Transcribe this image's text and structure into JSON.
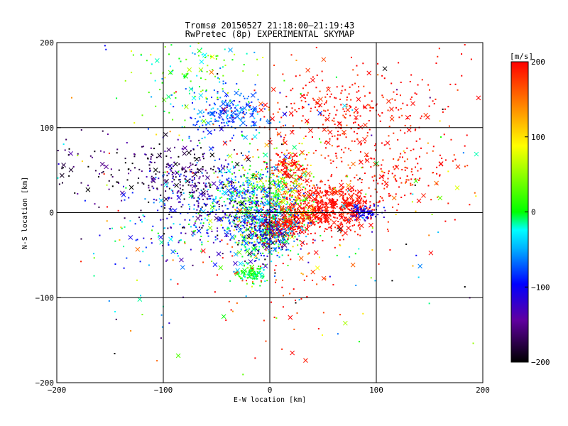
{
  "chart_data": {
    "type": "scatter",
    "title": "Tromsø 20150527 21:18:00–21:19:43",
    "subtitle": "RwPretec (8p) EXPERIMENTAL SKYMAP",
    "xlabel": "E-W location [km]",
    "ylabel": "N-S location [km]",
    "xlim": [
      -200,
      200
    ],
    "ylim": [
      -200,
      200
    ],
    "xticks": [
      "−200",
      "−100",
      "0",
      "100",
      "200"
    ],
    "yticks": [
      "−200",
      "−100",
      "0",
      "100",
      "200"
    ],
    "xtick_values": [
      -200,
      -100,
      0,
      100,
      200
    ],
    "ytick_values": [
      -200,
      -100,
      0,
      100,
      200
    ],
    "grid": true,
    "colorbar": {
      "label": "[m/s]",
      "range": [
        -200,
        200
      ],
      "ticks": [
        "200",
        "100",
        "0",
        "−100",
        "−200"
      ],
      "tick_values": [
        200,
        100,
        0,
        -100,
        -200
      ],
      "colors": [
        "#000000",
        "#6000a0",
        "#0000ff",
        "#00ffff",
        "#00ff00",
        "#ffff00",
        "#ff8000",
        "#ff0000"
      ]
    },
    "clusters": [
      {
        "x": 55,
        "y": 5,
        "sx": 22,
        "sy": 14,
        "n": 620,
        "v": 200,
        "dv": 15
      },
      {
        "x": 60,
        "y": 120,
        "sx": 40,
        "sy": 25,
        "n": 300,
        "v": 195,
        "dv": 20
      },
      {
        "x": 110,
        "y": 50,
        "sx": 30,
        "sy": 20,
        "n": 160,
        "v": 195,
        "dv": 20
      },
      {
        "x": 20,
        "y": 30,
        "sx": 15,
        "sy": 25,
        "n": 220,
        "v": 110,
        "dv": 60
      },
      {
        "x": -10,
        "y": 15,
        "sx": 20,
        "sy": 22,
        "n": 520,
        "v": -20,
        "dv": 60
      },
      {
        "x": -5,
        "y": -25,
        "sx": 15,
        "sy": 15,
        "n": 360,
        "v": -40,
        "dv": 80
      },
      {
        "x": -60,
        "y": 10,
        "sx": 30,
        "sy": 25,
        "n": 330,
        "v": -120,
        "dv": 60
      },
      {
        "x": -40,
        "y": 115,
        "sx": 20,
        "sy": 15,
        "n": 230,
        "v": -70,
        "dv": 25
      },
      {
        "x": -70,
        "y": 170,
        "sx": 30,
        "sy": 30,
        "n": 150,
        "v": 10,
        "dv": 40
      },
      {
        "x": -140,
        "y": 55,
        "sx": 40,
        "sy": 20,
        "n": 110,
        "v": -180,
        "dv": 30
      },
      {
        "x": -80,
        "y": 50,
        "sx": 20,
        "sy": 15,
        "n": 140,
        "v": -160,
        "dv": 30
      },
      {
        "x": 90,
        "y": 0,
        "sx": 6,
        "sy": 4,
        "n": 90,
        "v": -110,
        "dv": 20
      },
      {
        "x": -18,
        "y": -72,
        "sx": 6,
        "sy": 5,
        "n": 110,
        "v": 0,
        "dv": 25
      },
      {
        "x": 15,
        "y": -15,
        "sx": 12,
        "sy": 8,
        "n": 160,
        "v": 200,
        "dv": 20
      },
      {
        "x": 15,
        "y": 55,
        "sx": 8,
        "sy": 6,
        "n": 80,
        "v": 200,
        "dv": 15
      },
      {
        "x": 0,
        "y": -20,
        "sx": 15,
        "sy": 12,
        "n": 160,
        "v": -100,
        "dv": 40
      },
      {
        "x": -100,
        "y": -30,
        "sx": 30,
        "sy": 20,
        "n": 60,
        "v": -60,
        "dv": 40
      },
      {
        "x": 10,
        "y": -80,
        "sx": 30,
        "sy": 40,
        "n": 60,
        "v": 190,
        "dv": 30
      },
      {
        "x": 0,
        "y": 0,
        "sx": 110,
        "sy": 90,
        "n": 300,
        "v": 50,
        "dv": 150
      },
      {
        "x": 150,
        "y": 100,
        "sx": 30,
        "sy": 60,
        "n": 50,
        "v": 200,
        "dv": 10
      }
    ]
  }
}
